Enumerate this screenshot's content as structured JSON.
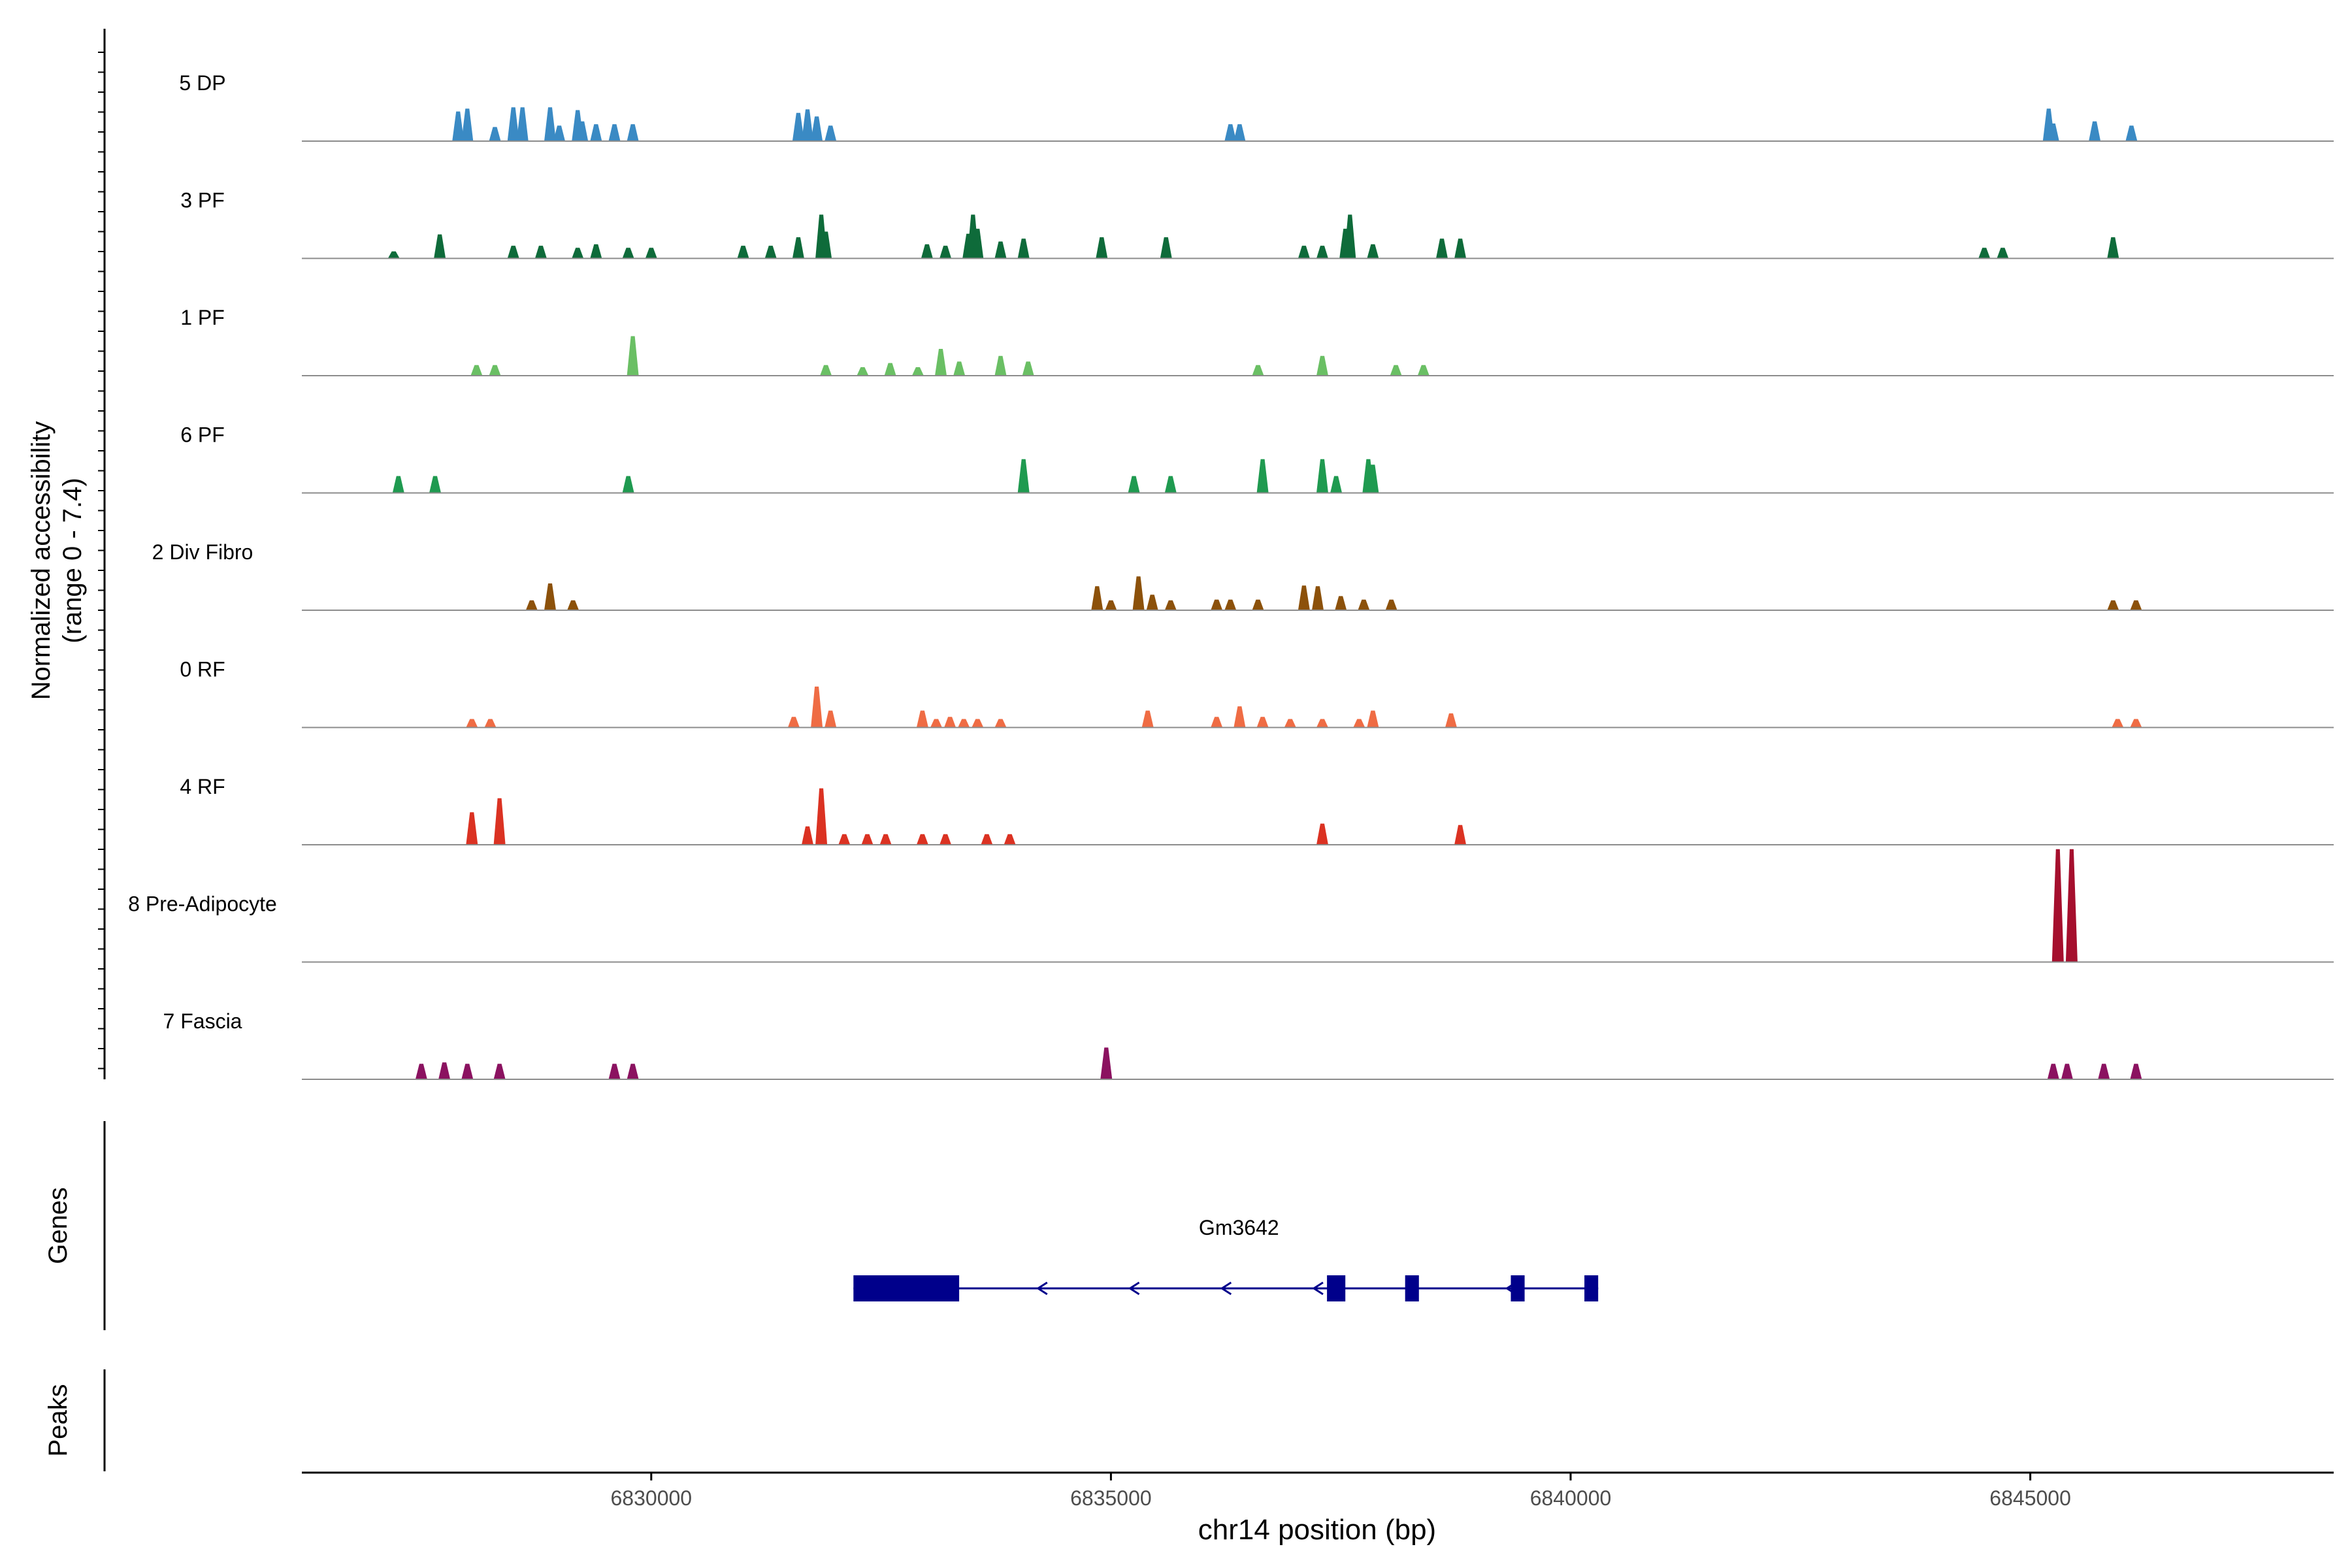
{
  "chart_data": {
    "type": "area",
    "ylabel_line1": "Normalized accessibility",
    "ylabel_line2": "(range 0 - 7.4)",
    "y_range": [
      0,
      7.4
    ],
    "xlabel": "chr14 position (bp)",
    "x_range": [
      6826200,
      6848300
    ],
    "x_ticks": [
      6830000,
      6835000,
      6840000,
      6845000
    ],
    "x_tick_labels": [
      "6830000",
      "6835000",
      "6840000",
      "6845000"
    ],
    "genes_panel_label": "Genes",
    "peaks_panel_label": "Peaks",
    "tracks": [
      {
        "name": "5 DP",
        "color": "#3a8ac4",
        "peaks": [
          [
            6827900,
            4.2
          ],
          [
            6828000,
            4.6
          ],
          [
            6828300,
            2.0
          ],
          [
            6828500,
            4.8
          ],
          [
            6828600,
            4.8
          ],
          [
            6828900,
            4.8
          ],
          [
            6829000,
            2.2
          ],
          [
            6829200,
            4.4
          ],
          [
            6829250,
            2.8
          ],
          [
            6829400,
            2.4
          ],
          [
            6829600,
            2.4
          ],
          [
            6829800,
            2.4
          ],
          [
            6831600,
            4.0
          ],
          [
            6831700,
            4.5
          ],
          [
            6831800,
            3.5
          ],
          [
            6831950,
            2.2
          ],
          [
            6836300,
            2.4
          ],
          [
            6836400,
            2.4
          ],
          [
            6845200,
            4.6
          ],
          [
            6845250,
            2.5
          ],
          [
            6845700,
            2.8
          ],
          [
            6846100,
            2.2
          ]
        ]
      },
      {
        "name": "3 PF",
        "color": "#0e6b3a",
        "peaks": [
          [
            6827200,
            1.0
          ],
          [
            6827700,
            3.4
          ],
          [
            6828500,
            1.8
          ],
          [
            6828800,
            1.8
          ],
          [
            6829200,
            1.5
          ],
          [
            6829400,
            2.0
          ],
          [
            6829750,
            1.5
          ],
          [
            6830000,
            1.5
          ],
          [
            6831000,
            1.8
          ],
          [
            6831300,
            1.8
          ],
          [
            6831600,
            3.0
          ],
          [
            6831850,
            6.2
          ],
          [
            6831900,
            3.8
          ],
          [
            6833000,
            2.0
          ],
          [
            6833200,
            1.8
          ],
          [
            6833450,
            3.5
          ],
          [
            6833500,
            6.2
          ],
          [
            6833550,
            4.2
          ],
          [
            6833800,
            2.4
          ],
          [
            6834050,
            2.8
          ],
          [
            6834900,
            3.0
          ],
          [
            6835600,
            3.0
          ],
          [
            6837100,
            1.8
          ],
          [
            6837300,
            1.8
          ],
          [
            6837550,
            4.2
          ],
          [
            6837600,
            6.2
          ],
          [
            6837850,
            2.0
          ],
          [
            6838600,
            2.8
          ],
          [
            6838800,
            2.8
          ],
          [
            6844500,
            1.5
          ],
          [
            6844700,
            1.5
          ],
          [
            6845900,
            3.0
          ]
        ]
      },
      {
        "name": "1 PF",
        "color": "#6abf64",
        "peaks": [
          [
            6828100,
            1.5
          ],
          [
            6828300,
            1.5
          ],
          [
            6829800,
            5.6
          ],
          [
            6831900,
            1.5
          ],
          [
            6832300,
            1.2
          ],
          [
            6832600,
            1.8
          ],
          [
            6832900,
            1.2
          ],
          [
            6833150,
            3.8
          ],
          [
            6833350,
            2.0
          ],
          [
            6833800,
            2.8
          ],
          [
            6834100,
            2.0
          ],
          [
            6836600,
            1.5
          ],
          [
            6837300,
            2.8
          ],
          [
            6838100,
            1.5
          ],
          [
            6838400,
            1.5
          ]
        ]
      },
      {
        "name": "6 PF",
        "color": "#1f9a50",
        "peaks": [
          [
            6827250,
            2.4
          ],
          [
            6827650,
            2.4
          ],
          [
            6829750,
            2.4
          ],
          [
            6834050,
            4.8
          ],
          [
            6835250,
            2.4
          ],
          [
            6835650,
            2.4
          ],
          [
            6836650,
            4.8
          ],
          [
            6837300,
            4.8
          ],
          [
            6837450,
            2.4
          ],
          [
            6837800,
            4.8
          ],
          [
            6837850,
            4.0
          ]
        ]
      },
      {
        "name": "2 Div Fibro",
        "color": "#8c510a",
        "peaks": [
          [
            6828700,
            1.4
          ],
          [
            6828900,
            3.8
          ],
          [
            6829150,
            1.4
          ],
          [
            6834850,
            3.4
          ],
          [
            6835000,
            1.4
          ],
          [
            6835300,
            4.8
          ],
          [
            6835450,
            2.2
          ],
          [
            6835650,
            1.4
          ],
          [
            6836150,
            1.5
          ],
          [
            6836300,
            1.5
          ],
          [
            6836600,
            1.5
          ],
          [
            6837100,
            3.5
          ],
          [
            6837250,
            3.4
          ],
          [
            6837500,
            2.0
          ],
          [
            6837750,
            1.5
          ],
          [
            6838050,
            1.5
          ],
          [
            6845900,
            1.4
          ],
          [
            6846150,
            1.4
          ]
        ]
      },
      {
        "name": "0 RF",
        "color": "#ef6c44",
        "peaks": [
          [
            6828050,
            1.2
          ],
          [
            6828250,
            1.2
          ],
          [
            6831550,
            1.5
          ],
          [
            6831800,
            5.8
          ],
          [
            6831950,
            2.4
          ],
          [
            6832950,
            2.4
          ],
          [
            6833100,
            1.2
          ],
          [
            6833250,
            1.5
          ],
          [
            6833400,
            1.2
          ],
          [
            6833550,
            1.2
          ],
          [
            6833800,
            1.2
          ],
          [
            6835400,
            2.4
          ],
          [
            6836150,
            1.5
          ],
          [
            6836400,
            3.0
          ],
          [
            6836650,
            1.5
          ],
          [
            6836950,
            1.2
          ],
          [
            6837300,
            1.2
          ],
          [
            6837700,
            1.2
          ],
          [
            6837850,
            2.4
          ],
          [
            6838700,
            2.0
          ],
          [
            6845950,
            1.2
          ],
          [
            6846150,
            1.2
          ]
        ]
      },
      {
        "name": "4 RF",
        "color": "#db3222",
        "peaks": [
          [
            6828050,
            4.6
          ],
          [
            6828350,
            6.6
          ],
          [
            6831700,
            2.6
          ],
          [
            6831850,
            8.0
          ],
          [
            6832100,
            1.5
          ],
          [
            6832350,
            1.5
          ],
          [
            6832550,
            1.5
          ],
          [
            6832950,
            1.5
          ],
          [
            6833200,
            1.5
          ],
          [
            6833650,
            1.5
          ],
          [
            6833900,
            1.5
          ],
          [
            6837300,
            3.0
          ],
          [
            6838800,
            2.8
          ]
        ]
      },
      {
        "name": "8 Pre-Adipocyte",
        "color": "#a50f2d",
        "peaks": [
          [
            6845300,
            16.0
          ],
          [
            6845450,
            16.0
          ]
        ]
      },
      {
        "name": "7 Fascia",
        "color": "#8b1260",
        "peaks": [
          [
            6827500,
            2.2
          ],
          [
            6827750,
            2.4
          ],
          [
            6828000,
            2.2
          ],
          [
            6828350,
            2.2
          ],
          [
            6829600,
            2.2
          ],
          [
            6829800,
            2.2
          ],
          [
            6834950,
            4.5
          ],
          [
            6845250,
            2.2
          ],
          [
            6845400,
            2.2
          ],
          [
            6845800,
            2.2
          ],
          [
            6846150,
            2.2
          ]
        ]
      }
    ],
    "gene": {
      "name": "Gm3642",
      "color": "#00008b",
      "strand": "-",
      "start": 6832200,
      "end": 6840300,
      "exons": [
        [
          6832200,
          6833350
        ],
        [
          6837350,
          6837550
        ],
        [
          6838200,
          6838350
        ],
        [
          6839350,
          6839500
        ],
        [
          6840150,
          6840300
        ]
      ],
      "arrows": [
        6834250,
        6835250,
        6836250,
        6837250,
        6839350
      ]
    }
  }
}
